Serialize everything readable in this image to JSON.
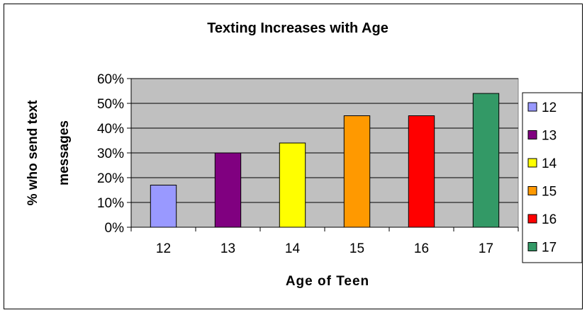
{
  "chart_data": {
    "type": "bar",
    "title": "Texting Increases with Age",
    "xlabel": "Age of Teen",
    "ylabel_lines": [
      "% who send text",
      "messages"
    ],
    "categories": [
      "12",
      "13",
      "14",
      "15",
      "16",
      "17"
    ],
    "values": [
      0.17,
      0.3,
      0.34,
      0.45,
      0.45,
      0.54
    ],
    "ylim": [
      0,
      0.6
    ],
    "yticks": [
      {
        "value": 0,
        "label": "0%"
      },
      {
        "value": 0.1,
        "label": "10%"
      },
      {
        "value": 0.2,
        "label": "20%"
      },
      {
        "value": 0.3,
        "label": "30%"
      },
      {
        "value": 0.4,
        "label": "40%"
      },
      {
        "value": 0.5,
        "label": "50%"
      },
      {
        "value": 0.6,
        "label": "60%"
      }
    ],
    "colors": [
      "#9999ff",
      "#800080",
      "#ffff00",
      "#ff9900",
      "#ff0000",
      "#339966"
    ],
    "plot_background": "#c0c0c0",
    "grid": true,
    "legend": {
      "placement": "right",
      "entries": [
        "12",
        "13",
        "14",
        "15",
        "16",
        "17"
      ]
    }
  }
}
